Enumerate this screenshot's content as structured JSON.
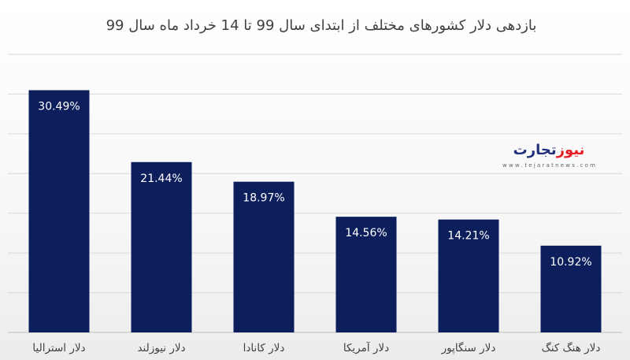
{
  "chart_data": {
    "type": "bar",
    "title": "بازدهی دلار کشورهای مختلف از ابتدای سال 99 تا 14 خرداد ماه سال 99",
    "categories": [
      "دلار استرالیا",
      "دلار نیوزلند",
      "دلار کانادا",
      "دلار آمریکا",
      "دلار سنگاپور",
      "دلار هنگ کنگ"
    ],
    "values": [
      30.49,
      21.44,
      18.97,
      14.56,
      14.21,
      10.92
    ],
    "value_labels": [
      "30.49%",
      "21.44%",
      "18.97%",
      "14.56%",
      "14.21%",
      "10.92%"
    ],
    "ylim": [
      0,
      35
    ],
    "grid": true,
    "bar_color": "#0c1f5c"
  },
  "watermark": {
    "brand_part1": "تجارت",
    "brand_part2": "نیوز",
    "url": "w w w . t e j a r a t n e w s . c o m"
  }
}
